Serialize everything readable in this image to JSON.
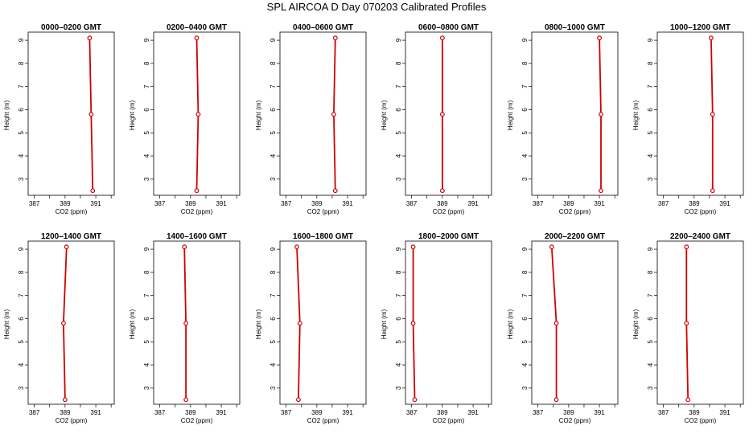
{
  "title": "SPL AIRCOA D  Day 070203  Calibrated Profiles",
  "chart_data": {
    "type": "line",
    "title": "SPL AIRCOA D  Day 070203  Calibrated Profiles",
    "xlabel": "CO2 (ppm)",
    "ylabel": "Height (m)",
    "xlim": [
      386.6,
      392.2
    ],
    "ylim": [
      2.3,
      9.35
    ],
    "x_ticks": [
      387,
      388,
      389,
      390,
      391,
      392
    ],
    "x_tick_labels": [
      "387",
      "",
      "389",
      "",
      "391",
      ""
    ],
    "y_ticks": [
      3,
      4,
      5,
      6,
      7,
      8,
      9
    ],
    "y_tick_labels": [
      "3",
      "4",
      "5",
      "6",
      "7",
      "8",
      "9"
    ],
    "line_color": "#d00000",
    "marker": "open-circle",
    "grid": false,
    "panels": [
      {
        "title": "0000–0200 GMT",
        "points": [
          {
            "x": 390.6,
            "y": 9.1
          },
          {
            "x": 390.7,
            "y": 5.8
          },
          {
            "x": 390.8,
            "y": 2.5
          }
        ]
      },
      {
        "title": "0200–0400 GMT",
        "points": [
          {
            "x": 389.4,
            "y": 9.1
          },
          {
            "x": 389.5,
            "y": 5.8
          },
          {
            "x": 389.4,
            "y": 2.5
          }
        ]
      },
      {
        "title": "0400–0600 GMT",
        "points": [
          {
            "x": 390.2,
            "y": 9.1
          },
          {
            "x": 390.1,
            "y": 5.8
          },
          {
            "x": 390.2,
            "y": 2.5
          }
        ]
      },
      {
        "title": "0600–0800 GMT",
        "points": [
          {
            "x": 389.0,
            "y": 9.1
          },
          {
            "x": 389.0,
            "y": 5.8
          },
          {
            "x": 389.0,
            "y": 2.5
          }
        ]
      },
      {
        "title": "0800–1000 GMT",
        "points": [
          {
            "x": 391.0,
            "y": 9.1
          },
          {
            "x": 391.1,
            "y": 5.8
          },
          {
            "x": 391.1,
            "y": 2.5
          }
        ]
      },
      {
        "title": "1000–1200 GMT",
        "points": [
          {
            "x": 390.1,
            "y": 9.1
          },
          {
            "x": 390.2,
            "y": 5.8
          },
          {
            "x": 390.2,
            "y": 2.5
          }
        ]
      },
      {
        "title": "1200–1400 GMT",
        "points": [
          {
            "x": 389.1,
            "y": 9.1
          },
          {
            "x": 388.9,
            "y": 5.8
          },
          {
            "x": 389.0,
            "y": 2.5
          }
        ]
      },
      {
        "title": "1400–1600 GMT",
        "points": [
          {
            "x": 388.6,
            "y": 9.1
          },
          {
            "x": 388.7,
            "y": 5.8
          },
          {
            "x": 388.7,
            "y": 2.5
          }
        ]
      },
      {
        "title": "1600–1800 GMT",
        "points": [
          {
            "x": 387.7,
            "y": 9.1
          },
          {
            "x": 387.9,
            "y": 5.8
          },
          {
            "x": 387.8,
            "y": 2.5
          }
        ]
      },
      {
        "title": "1800–2000 GMT",
        "points": [
          {
            "x": 387.1,
            "y": 9.1
          },
          {
            "x": 387.1,
            "y": 5.8
          },
          {
            "x": 387.2,
            "y": 2.5
          }
        ]
      },
      {
        "title": "2000–2200 GMT",
        "points": [
          {
            "x": 387.9,
            "y": 9.1
          },
          {
            "x": 388.2,
            "y": 5.8
          },
          {
            "x": 388.2,
            "y": 2.5
          }
        ]
      },
      {
        "title": "2200–2400 GMT",
        "points": [
          {
            "x": 388.5,
            "y": 9.1
          },
          {
            "x": 388.5,
            "y": 5.8
          },
          {
            "x": 388.6,
            "y": 2.5
          }
        ]
      }
    ]
  }
}
